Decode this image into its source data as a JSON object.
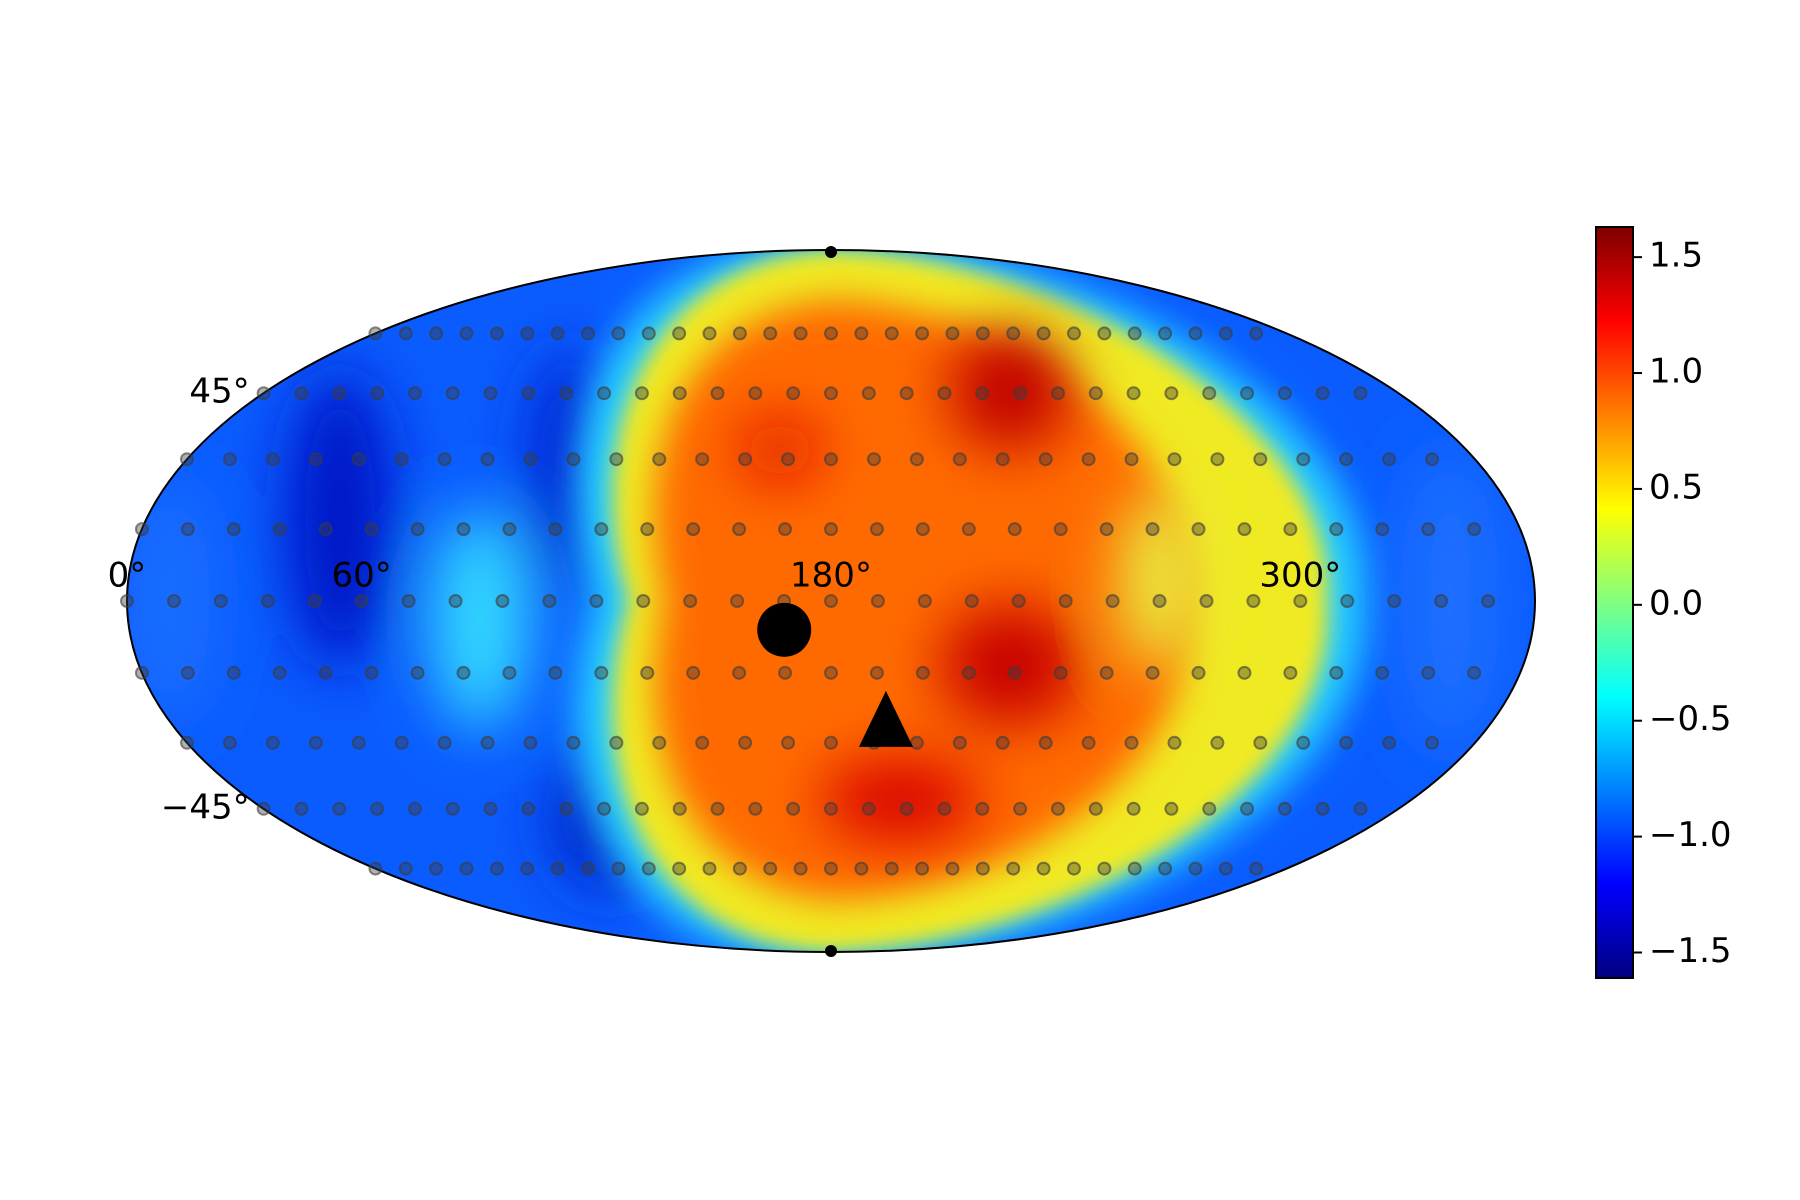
{
  "chart_data": {
    "type": "skymap",
    "projection": "mollweide",
    "colormap": "jet",
    "clim": [
      -1.61,
      1.63
    ],
    "cticks": [
      {
        "value": -1.5,
        "label": "−1.5"
      },
      {
        "value": -1.0,
        "label": "−1.0"
      },
      {
        "value": -0.5,
        "label": "−0.5"
      },
      {
        "value": 0.0,
        "label": "0.0"
      },
      0.5,
      {
        "value": 1.0,
        "label": "1.0"
      },
      1.5
    ],
    "xticks": [
      {
        "value": 0,
        "label": "0°"
      },
      {
        "value": 60,
        "label": "60°"
      },
      {
        "value": 180,
        "label": "180°"
      },
      {
        "value": 300,
        "label": "300°"
      }
    ],
    "yticks": [
      {
        "value": 45,
        "label": "45°"
      },
      {
        "value": -45,
        "label": "−45°"
      }
    ],
    "sample_points": {
      "lat": [
        -60,
        -45,
        -30,
        -15,
        0,
        15,
        30,
        45,
        60
      ],
      "lon": [
        0,
        12,
        24,
        36,
        48,
        60,
        72,
        84,
        96,
        108,
        120,
        132,
        144,
        156,
        168,
        180,
        192,
        204,
        216,
        228,
        240,
        252,
        264,
        276,
        288,
        300,
        312,
        324,
        336,
        348
      ],
      "color": "#3c3c3c"
    },
    "markers": [
      {
        "shape": "circle",
        "lon": 168,
        "lat": -6,
        "color": "#000000"
      },
      {
        "shape": "triangle",
        "lon": 195,
        "lat": -26,
        "color": "#000000"
      }
    ]
  }
}
